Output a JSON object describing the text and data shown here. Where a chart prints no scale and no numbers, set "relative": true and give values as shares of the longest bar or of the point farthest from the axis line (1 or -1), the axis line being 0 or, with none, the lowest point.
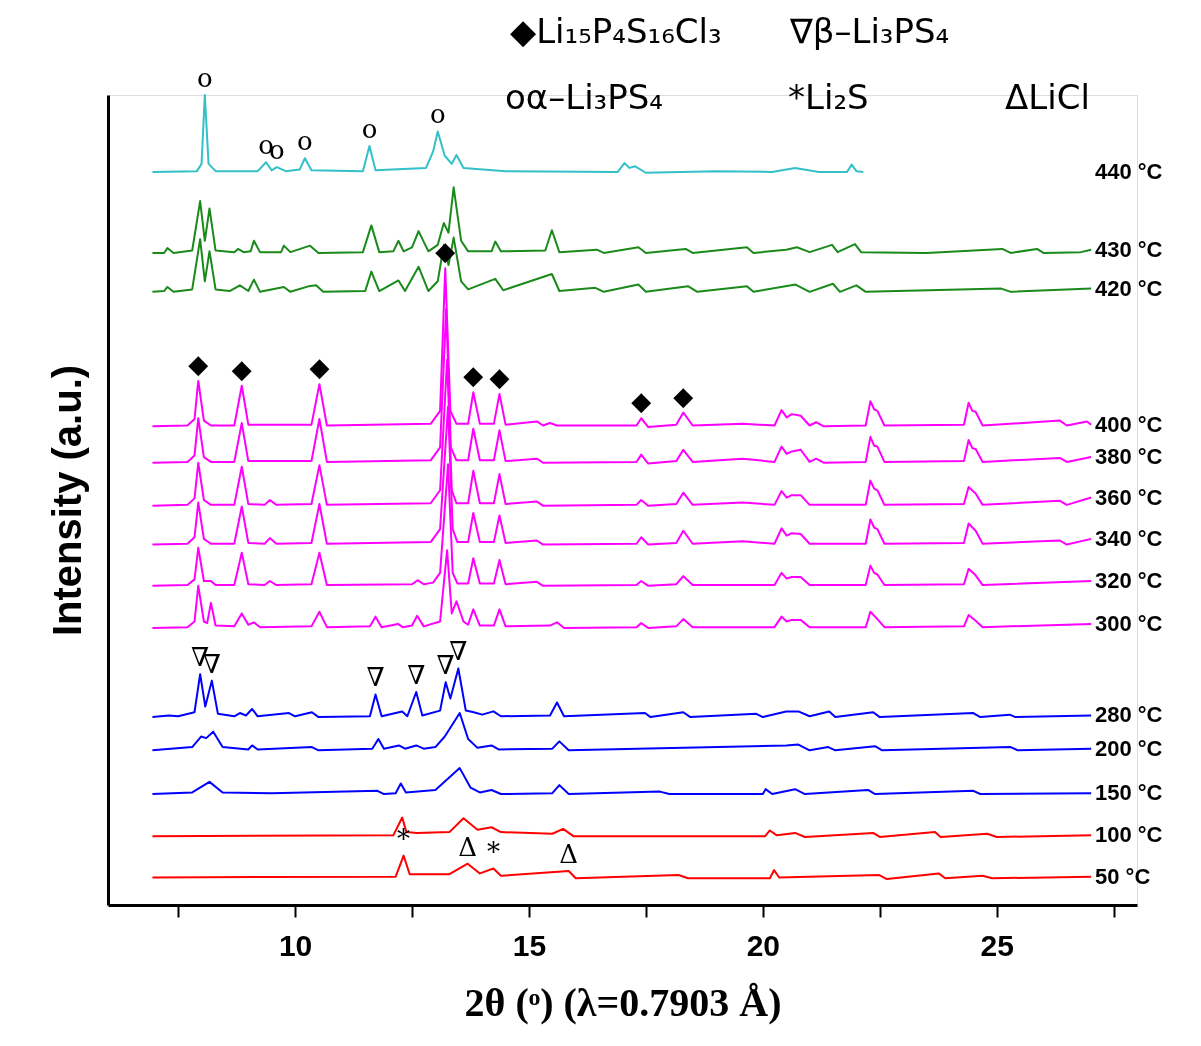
{
  "chart_data": {
    "type": "line",
    "relative": true,
    "xlabel": "2θ (ᵒ) (λ=0.7903  Å)",
    "ylabel": "Intensity (a.u.)",
    "xlim": [
      6,
      28
    ],
    "xticks": [
      {
        "value": 7.5,
        "label": null
      },
      10,
      {
        "value": 12.5,
        "label": null
      },
      15,
      {
        "value": 17.5,
        "label": null
      },
      20,
      {
        "value": 22.5,
        "label": null
      },
      25,
      {
        "value": 27.5,
        "label": null
      }
    ],
    "tick_labels": "x",
    "line_style": "solid",
    "series": [
      {
        "name": "440 °C",
        "color": "#33c0c8",
        "x": [
          6.95,
          7.9,
          8.0,
          8.07,
          8.15,
          8.3,
          9.2,
          9.38,
          9.5,
          9.61,
          9.8,
          10.1,
          10.21,
          10.35,
          11.45,
          11.59,
          11.72,
          12.8,
          12.95,
          13.05,
          13.2,
          13.35,
          13.45,
          13.6,
          14.5,
          16.9,
          17.04,
          17.15,
          17.27,
          17.5,
          19.0,
          20.2,
          20.69,
          21.2,
          21.8,
          21.9,
          22.0,
          22.15
        ],
        "values": [
          0.905,
          0.906,
          0.915,
          1.0,
          0.915,
          0.906,
          0.906,
          0.917,
          0.907,
          0.911,
          0.906,
          0.908,
          0.922,
          0.907,
          0.906,
          0.937,
          0.907,
          0.91,
          0.93,
          0.955,
          0.925,
          0.915,
          0.926,
          0.91,
          0.906,
          0.905,
          0.916,
          0.91,
          0.912,
          0.904,
          0.906,
          0.905,
          0.91,
          0.905,
          0.905,
          0.914,
          0.906,
          0.905
        ]
      },
      {
        "name": "430 °C",
        "color": "#1a8a1a",
        "x": [
          6.95,
          7.2,
          7.27,
          7.4,
          7.8,
          7.97,
          8.07,
          8.17,
          8.3,
          8.7,
          8.78,
          8.9,
          9.05,
          9.12,
          9.25,
          9.7,
          9.76,
          9.9,
          10.32,
          10.5,
          11.45,
          11.63,
          11.8,
          12.1,
          12.21,
          12.32,
          12.5,
          12.64,
          12.85,
          13.05,
          13.18,
          13.28,
          13.39,
          13.55,
          13.7,
          14.2,
          14.28,
          14.4,
          15.35,
          15.49,
          15.65,
          16.45,
          16.6,
          17.34,
          17.5,
          18.35,
          18.5,
          19.66,
          19.8,
          20.5,
          20.73,
          21.0,
          21.48,
          21.6,
          21.97,
          22.1,
          23.5,
          25.12,
          25.3,
          25.86,
          26.0,
          26.8,
          27.02
        ],
        "values": [
          0.805,
          0.805,
          0.811,
          0.805,
          0.808,
          0.869,
          0.82,
          0.86,
          0.808,
          0.806,
          0.81,
          0.806,
          0.807,
          0.82,
          0.806,
          0.806,
          0.814,
          0.806,
          0.814,
          0.805,
          0.806,
          0.839,
          0.806,
          0.807,
          0.82,
          0.807,
          0.812,
          0.832,
          0.807,
          0.815,
          0.842,
          0.83,
          0.886,
          0.82,
          0.807,
          0.807,
          0.819,
          0.807,
          0.808,
          0.833,
          0.806,
          0.809,
          0.805,
          0.812,
          0.805,
          0.81,
          0.805,
          0.812,
          0.805,
          0.809,
          0.812,
          0.806,
          0.815,
          0.806,
          0.816,
          0.806,
          0.805,
          0.81,
          0.805,
          0.81,
          0.805,
          0.806,
          0.809
        ]
      },
      {
        "name": "420 °C",
        "color": "#1a8a1a",
        "x": [
          6.95,
          7.2,
          7.27,
          7.4,
          7.8,
          7.97,
          8.07,
          8.17,
          8.3,
          8.6,
          8.82,
          9.0,
          9.12,
          9.25,
          9.76,
          9.9,
          10.3,
          10.45,
          10.6,
          11.5,
          11.63,
          11.8,
          12.21,
          12.35,
          12.64,
          12.85,
          13.05,
          13.18,
          13.28,
          13.39,
          13.55,
          13.7,
          14.28,
          14.45,
          15.49,
          15.65,
          16.42,
          16.6,
          17.34,
          17.5,
          18.4,
          18.6,
          19.66,
          19.8,
          20.7,
          21.0,
          21.5,
          21.65,
          22.0,
          22.2,
          25.1,
          25.3,
          27.02
        ],
        "values": [
          0.757,
          0.758,
          0.763,
          0.757,
          0.76,
          0.822,
          0.77,
          0.807,
          0.76,
          0.758,
          0.765,
          0.758,
          0.772,
          0.757,
          0.763,
          0.757,
          0.764,
          0.765,
          0.757,
          0.758,
          0.782,
          0.758,
          0.771,
          0.758,
          0.788,
          0.758,
          0.77,
          0.815,
          0.79,
          0.824,
          0.77,
          0.76,
          0.773,
          0.759,
          0.779,
          0.758,
          0.762,
          0.757,
          0.766,
          0.757,
          0.764,
          0.757,
          0.764,
          0.757,
          0.766,
          0.757,
          0.767,
          0.757,
          0.765,
          0.757,
          0.761,
          0.757,
          0.761
        ]
      },
      {
        "name": "400 °C",
        "color": "#ff00ff",
        "x": [
          6.95,
          7.7,
          7.85,
          7.93,
          8.05,
          8.2,
          8.7,
          8.86,
          9.0,
          10.35,
          10.52,
          10.68,
          12.9,
          13.1,
          13.21,
          13.32,
          13.45,
          13.7,
          13.81,
          13.95,
          14.25,
          14.37,
          14.5,
          15.17,
          15.3,
          15.45,
          15.6,
          17.3,
          17.4,
          17.55,
          18.15,
          18.3,
          18.5,
          19.57,
          20.25,
          20.4,
          20.51,
          20.62,
          20.81,
          21.0,
          21.14,
          21.3,
          22.2,
          22.3,
          22.38,
          22.45,
          22.6,
          24.3,
          24.4,
          24.48,
          24.55,
          24.7,
          26.35,
          26.5,
          26.93,
          27.02
        ],
        "values": [
          0.591,
          0.592,
          0.6,
          0.647,
          0.598,
          0.592,
          0.592,
          0.641,
          0.593,
          0.593,
          0.643,
          0.592,
          0.594,
          0.61,
          0.786,
          0.61,
          0.594,
          0.594,
          0.633,
          0.594,
          0.594,
          0.631,
          0.593,
          0.597,
          0.592,
          0.595,
          0.592,
          0.592,
          0.601,
          0.59,
          0.593,
          0.608,
          0.592,
          0.594,
          0.592,
          0.611,
          0.602,
          0.606,
          0.604,
          0.592,
          0.596,
          0.591,
          0.592,
          0.622,
          0.612,
          0.61,
          0.592,
          0.593,
          0.62,
          0.61,
          0.609,
          0.592,
          0.598,
          0.592,
          0.597,
          0.593
        ]
      },
      {
        "name": "380 °C",
        "color": "#ff00ff",
        "x": [
          6.95,
          7.7,
          7.85,
          7.93,
          8.05,
          8.2,
          8.7,
          8.86,
          9.0,
          10.35,
          10.52,
          10.68,
          12.9,
          13.1,
          13.23,
          13.33,
          13.45,
          13.7,
          13.81,
          13.95,
          14.25,
          14.37,
          14.5,
          15.17,
          15.3,
          17.3,
          17.4,
          17.55,
          18.15,
          18.3,
          18.5,
          19.57,
          20.25,
          20.4,
          20.51,
          20.62,
          20.81,
          21.0,
          21.14,
          21.3,
          22.2,
          22.3,
          22.38,
          22.45,
          22.6,
          24.3,
          24.4,
          24.48,
          24.55,
          24.7,
          26.35,
          26.5,
          27.02
        ],
        "values": [
          0.546,
          0.547,
          0.555,
          0.601,
          0.553,
          0.547,
          0.547,
          0.595,
          0.548,
          0.548,
          0.6,
          0.547,
          0.549,
          0.565,
          0.736,
          0.565,
          0.549,
          0.549,
          0.588,
          0.549,
          0.549,
          0.586,
          0.548,
          0.551,
          0.546,
          0.547,
          0.556,
          0.545,
          0.548,
          0.562,
          0.547,
          0.551,
          0.547,
          0.566,
          0.557,
          0.56,
          0.562,
          0.547,
          0.551,
          0.546,
          0.547,
          0.578,
          0.567,
          0.566,
          0.547,
          0.548,
          0.574,
          0.564,
          0.563,
          0.547,
          0.552,
          0.547,
          0.553
        ]
      },
      {
        "name": "360 °C",
        "color": "#ff00ff",
        "x": [
          6.95,
          7.7,
          7.85,
          7.93,
          8.05,
          8.2,
          8.7,
          8.86,
          9.0,
          9.35,
          9.46,
          9.6,
          10.35,
          10.52,
          10.68,
          12.9,
          13.1,
          13.25,
          13.35,
          13.45,
          13.7,
          13.81,
          13.95,
          14.25,
          14.37,
          14.5,
          15.17,
          15.3,
          17.3,
          17.4,
          17.55,
          18.15,
          18.3,
          18.5,
          19.57,
          20.25,
          20.4,
          20.51,
          20.62,
          20.81,
          21.0,
          22.2,
          22.3,
          22.38,
          22.45,
          22.6,
          24.3,
          24.4,
          24.55,
          24.7,
          26.35,
          26.5,
          27.02
        ],
        "values": [
          0.493,
          0.494,
          0.502,
          0.546,
          0.5,
          0.494,
          0.494,
          0.541,
          0.495,
          0.494,
          0.5,
          0.494,
          0.495,
          0.543,
          0.494,
          0.496,
          0.512,
          0.673,
          0.512,
          0.496,
          0.496,
          0.536,
          0.496,
          0.496,
          0.532,
          0.495,
          0.498,
          0.493,
          0.494,
          0.5,
          0.493,
          0.495,
          0.509,
          0.494,
          0.497,
          0.494,
          0.511,
          0.503,
          0.506,
          0.506,
          0.494,
          0.494,
          0.524,
          0.514,
          0.512,
          0.494,
          0.495,
          0.516,
          0.508,
          0.494,
          0.499,
          0.494,
          0.503
        ]
      },
      {
        "name": "340 °C",
        "color": "#ff00ff",
        "x": [
          6.95,
          7.7,
          7.85,
          7.93,
          8.05,
          8.2,
          8.7,
          8.86,
          9.0,
          9.35,
          9.46,
          9.6,
          10.35,
          10.52,
          10.68,
          12.9,
          13.1,
          13.27,
          13.37,
          13.47,
          13.7,
          13.81,
          13.95,
          14.25,
          14.37,
          14.5,
          15.17,
          15.3,
          17.3,
          17.4,
          17.55,
          18.15,
          18.3,
          18.5,
          19.57,
          20.25,
          20.4,
          20.51,
          20.62,
          20.81,
          21.0,
          22.2,
          22.3,
          22.38,
          22.45,
          22.6,
          24.3,
          24.4,
          24.55,
          24.7,
          26.35,
          26.5,
          27.02
        ],
        "values": [
          0.445,
          0.446,
          0.454,
          0.497,
          0.452,
          0.446,
          0.446,
          0.492,
          0.447,
          0.446,
          0.453,
          0.446,
          0.447,
          0.495,
          0.446,
          0.448,
          0.464,
          0.615,
          0.464,
          0.448,
          0.448,
          0.484,
          0.448,
          0.448,
          0.481,
          0.447,
          0.45,
          0.445,
          0.446,
          0.454,
          0.445,
          0.447,
          0.462,
          0.446,
          0.449,
          0.446,
          0.465,
          0.456,
          0.459,
          0.458,
          0.446,
          0.446,
          0.476,
          0.466,
          0.464,
          0.446,
          0.447,
          0.471,
          0.462,
          0.446,
          0.45,
          0.445,
          0.452
        ]
      },
      {
        "name": "320 °C",
        "color": "#ff00ff",
        "x": [
          6.95,
          7.7,
          7.85,
          7.93,
          8.05,
          8.2,
          8.3,
          8.7,
          8.86,
          9.0,
          9.35,
          9.46,
          9.6,
          10.35,
          10.52,
          10.68,
          12.5,
          12.62,
          12.75,
          12.95,
          13.1,
          13.27,
          13.37,
          13.47,
          13.7,
          13.81,
          13.95,
          14.25,
          14.37,
          14.5,
          15.17,
          15.3,
          17.3,
          17.4,
          17.55,
          18.15,
          18.3,
          18.5,
          20.25,
          20.4,
          20.51,
          20.62,
          20.81,
          21.0,
          22.2,
          22.3,
          22.38,
          22.45,
          22.6,
          24.3,
          24.4,
          24.55,
          24.7,
          27.02
        ],
        "values": [
          0.394,
          0.395,
          0.402,
          0.441,
          0.4,
          0.4,
          0.395,
          0.395,
          0.435,
          0.396,
          0.395,
          0.4,
          0.395,
          0.396,
          0.435,
          0.395,
          0.396,
          0.401,
          0.396,
          0.398,
          0.41,
          0.544,
          0.41,
          0.397,
          0.397,
          0.428,
          0.397,
          0.397,
          0.426,
          0.396,
          0.399,
          0.394,
          0.395,
          0.4,
          0.394,
          0.396,
          0.406,
          0.395,
          0.395,
          0.41,
          0.403,
          0.405,
          0.405,
          0.395,
          0.395,
          0.419,
          0.41,
          0.408,
          0.395,
          0.396,
          0.415,
          0.407,
          0.395,
          0.4
        ]
      },
      {
        "name": "300 °C",
        "color": "#ff00ff",
        "x": [
          6.95,
          7.7,
          7.85,
          7.93,
          8.05,
          8.12,
          8.2,
          8.3,
          8.7,
          8.86,
          9.0,
          9.12,
          9.25,
          10.35,
          10.52,
          10.68,
          11.6,
          11.72,
          11.85,
          12.2,
          12.3,
          12.5,
          12.61,
          12.75,
          13.1,
          13.25,
          13.35,
          13.45,
          13.6,
          13.7,
          13.81,
          13.95,
          14.25,
          14.37,
          14.5,
          15.45,
          15.6,
          15.75,
          17.3,
          17.4,
          17.55,
          18.15,
          18.3,
          18.5,
          20.25,
          20.4,
          20.51,
          20.62,
          20.81,
          21.0,
          22.2,
          22.3,
          22.45,
          22.6,
          24.3,
          24.4,
          24.55,
          24.7,
          27.02
        ],
        "values": [
          0.342,
          0.343,
          0.35,
          0.394,
          0.35,
          0.348,
          0.373,
          0.345,
          0.344,
          0.36,
          0.346,
          0.349,
          0.343,
          0.344,
          0.362,
          0.343,
          0.344,
          0.356,
          0.343,
          0.347,
          0.343,
          0.345,
          0.357,
          0.344,
          0.35,
          0.438,
          0.36,
          0.375,
          0.35,
          0.346,
          0.365,
          0.345,
          0.345,
          0.365,
          0.344,
          0.345,
          0.349,
          0.342,
          0.343,
          0.348,
          0.342,
          0.344,
          0.353,
          0.343,
          0.343,
          0.356,
          0.35,
          0.352,
          0.352,
          0.343,
          0.343,
          0.362,
          0.353,
          0.343,
          0.344,
          0.358,
          0.351,
          0.343,
          0.347
        ]
      },
      {
        "name": "280 °C",
        "color": "#0000ff",
        "x": [
          6.95,
          7.3,
          7.5,
          7.85,
          7.97,
          8.08,
          8.22,
          8.35,
          8.7,
          8.82,
          8.95,
          9.08,
          9.2,
          9.87,
          10.0,
          10.36,
          10.5,
          11.6,
          11.72,
          11.85,
          12.29,
          12.4,
          12.59,
          12.72,
          13.1,
          13.22,
          13.32,
          13.49,
          13.65,
          13.82,
          14.0,
          14.24,
          14.4,
          15.45,
          15.6,
          15.75,
          17.48,
          17.6,
          18.3,
          18.45,
          19.86,
          20.0,
          20.5,
          20.76,
          21.0,
          21.42,
          21.55,
          22.36,
          22.5,
          24.5,
          24.65,
          25.28,
          25.4,
          27.02
        ],
        "values": [
          0.232,
          0.234,
          0.233,
          0.238,
          0.285,
          0.245,
          0.277,
          0.236,
          0.233,
          0.237,
          0.234,
          0.242,
          0.233,
          0.237,
          0.233,
          0.238,
          0.232,
          0.233,
          0.26,
          0.233,
          0.239,
          0.233,
          0.263,
          0.234,
          0.24,
          0.275,
          0.255,
          0.292,
          0.24,
          0.238,
          0.235,
          0.239,
          0.233,
          0.234,
          0.25,
          0.233,
          0.237,
          0.232,
          0.238,
          0.232,
          0.236,
          0.232,
          0.239,
          0.239,
          0.233,
          0.239,
          0.232,
          0.238,
          0.232,
          0.237,
          0.232,
          0.235,
          0.232,
          0.234
        ]
      },
      {
        "name": "200 °C",
        "color": "#0000ff",
        "x": [
          6.95,
          7.8,
          7.99,
          8.1,
          8.25,
          8.45,
          9.0,
          9.08,
          9.2,
          10.36,
          10.5,
          11.65,
          11.78,
          11.9,
          12.22,
          12.35,
          12.59,
          12.75,
          13.0,
          13.2,
          13.52,
          13.7,
          13.9,
          14.2,
          14.35,
          15.5,
          15.65,
          15.85,
          20.5,
          20.76,
          21.0,
          21.4,
          21.55,
          22.4,
          22.55,
          25.3,
          25.45,
          27.02
        ],
        "values": [
          0.191,
          0.195,
          0.208,
          0.206,
          0.214,
          0.195,
          0.192,
          0.197,
          0.192,
          0.195,
          0.191,
          0.193,
          0.205,
          0.193,
          0.197,
          0.193,
          0.197,
          0.193,
          0.195,
          0.208,
          0.237,
          0.205,
          0.194,
          0.197,
          0.192,
          0.193,
          0.202,
          0.191,
          0.197,
          0.198,
          0.191,
          0.195,
          0.191,
          0.196,
          0.191,
          0.195,
          0.191,
          0.193
        ]
      },
      {
        "name": "150 °C",
        "color": "#0000ff",
        "x": [
          6.95,
          7.8,
          8.17,
          8.45,
          9.5,
          11.76,
          11.9,
          12.15,
          12.26,
          12.37,
          13.0,
          13.52,
          13.75,
          13.95,
          14.2,
          14.4,
          15.5,
          15.65,
          15.85,
          17.8,
          18.0,
          20.0,
          20.06,
          20.2,
          20.69,
          20.9,
          22.25,
          22.4,
          24.5,
          24.65,
          27.02
        ],
        "values": [
          0.137,
          0.139,
          0.152,
          0.139,
          0.138,
          0.141,
          0.137,
          0.138,
          0.15,
          0.139,
          0.142,
          0.169,
          0.145,
          0.139,
          0.142,
          0.137,
          0.138,
          0.148,
          0.137,
          0.14,
          0.137,
          0.137,
          0.143,
          0.137,
          0.143,
          0.137,
          0.142,
          0.137,
          0.141,
          0.137,
          0.138
        ]
      },
      {
        "name": "100 °C",
        "color": "#ff0000",
        "x": [
          6.95,
          12.1,
          12.29,
          12.38,
          12.6,
          13.3,
          13.6,
          13.9,
          14.2,
          14.4,
          15.5,
          15.73,
          15.95,
          20.05,
          20.15,
          20.3,
          20.69,
          20.9,
          22.36,
          22.5,
          23.68,
          23.8,
          24.8,
          25.0,
          27.02
        ],
        "values": [
          0.085,
          0.086,
          0.108,
          0.09,
          0.089,
          0.09,
          0.107,
          0.093,
          0.096,
          0.09,
          0.088,
          0.094,
          0.085,
          0.085,
          0.092,
          0.086,
          0.089,
          0.084,
          0.089,
          0.084,
          0.09,
          0.084,
          0.088,
          0.084,
          0.086
        ]
      },
      {
        "name": "50 °C",
        "color": "#ff0000",
        "x": [
          6.95,
          12.15,
          12.32,
          12.45,
          13.3,
          13.69,
          13.95,
          14.24,
          14.4,
          15.85,
          16.0,
          18.2,
          18.4,
          20.15,
          20.24,
          20.35,
          22.49,
          22.65,
          23.76,
          23.9,
          24.7,
          24.9,
          27.02
        ],
        "values": [
          0.034,
          0.035,
          0.061,
          0.038,
          0.038,
          0.051,
          0.039,
          0.045,
          0.036,
          0.042,
          0.033,
          0.037,
          0.033,
          0.033,
          0.043,
          0.034,
          0.037,
          0.032,
          0.039,
          0.033,
          0.036,
          0.033,
          0.035
        ]
      }
    ],
    "annotations": [
      "◆Li₁₅P₄S₁₆Cl₃",
      "∇β–Li₃PS₄",
      "oα–Li₃PS₄",
      "*Li₂S",
      "ΔLiCl",
      {
        "text": "o",
        "x": 8.07,
        "y": 1.0
      },
      {
        "text": "o",
        "x": 9.38,
        "y": 0.917
      },
      {
        "text": "o",
        "x": 9.61,
        "y": 0.911
      },
      {
        "text": "o",
        "x": 10.21,
        "y": 0.922
      },
      {
        "text": "o",
        "x": 11.59,
        "y": 0.937
      },
      {
        "text": "o",
        "x": 13.05,
        "y": 0.955
      },
      {
        "text": "◆",
        "x": 7.93,
        "y": 0.647
      },
      {
        "text": "◆",
        "x": 8.86,
        "y": 0.641
      },
      {
        "text": "◆",
        "x": 10.52,
        "y": 0.643
      },
      {
        "text": "◆",
        "x": 13.21,
        "y": 0.786
      },
      {
        "text": "◆",
        "x": 13.81,
        "y": 0.633
      },
      {
        "text": "◆",
        "x": 14.37,
        "y": 0.631
      },
      {
        "text": "◆",
        "x": 17.4,
        "y": 0.601
      },
      {
        "text": "◆",
        "x": 18.3,
        "y": 0.608
      },
      {
        "text": "∇",
        "x": 7.97,
        "y": 0.285
      },
      {
        "text": "∇",
        "x": 8.22,
        "y": 0.277
      },
      {
        "text": "∇",
        "x": 11.72,
        "y": 0.26
      },
      {
        "text": "∇",
        "x": 12.59,
        "y": 0.263
      },
      {
        "text": "∇",
        "x": 13.22,
        "y": 0.275
      },
      {
        "text": "∇",
        "x": 13.49,
        "y": 0.292
      },
      {
        "text": "*",
        "x": 12.32,
        "y": 0.061
      },
      {
        "text": "*",
        "x": 14.24,
        "y": 0.045
      },
      {
        "text": "Δ",
        "x": 13.69,
        "y": 0.051
      },
      {
        "text": "Δ",
        "x": 15.85,
        "y": 0.042
      }
    ]
  }
}
